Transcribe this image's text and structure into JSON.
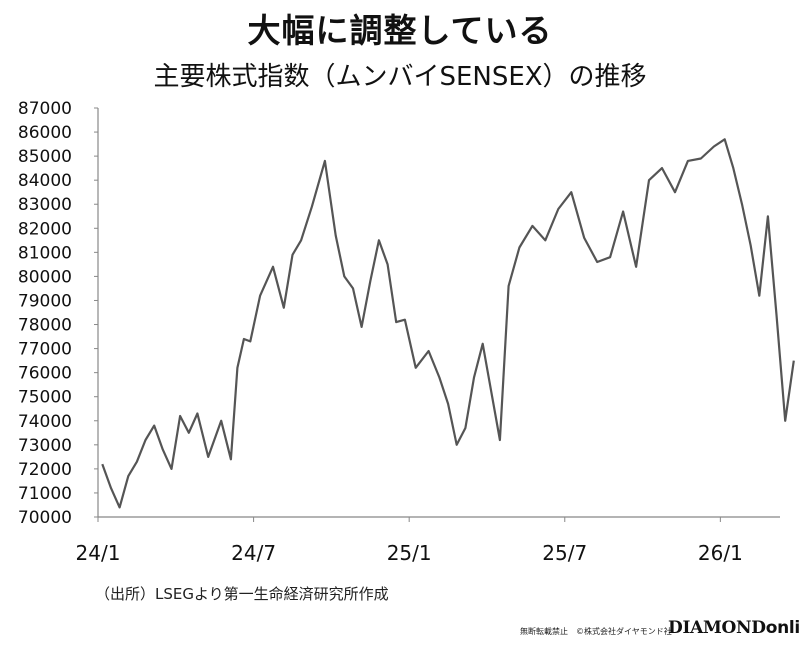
{
  "title": "大幅に調整している",
  "subtitle": "主要株式指数（ムンバイSENSEX）の推移",
  "source_note": "（出所）LSEGより第一生命経済研究所作成",
  "footer": {
    "rights": "無断転載禁止　©株式会社ダイヤモンド社",
    "brand_part1": "DIAMOND",
    "brand_part2": "online"
  },
  "chart_data": {
    "type": "line",
    "title": "主要株式指数（ムンバイSENSEX）の推移",
    "xlabel": "",
    "ylabel": "",
    "ylim": [
      70000,
      87000
    ],
    "yticks": [
      70000,
      71000,
      72000,
      73000,
      74000,
      75000,
      76000,
      77000,
      78000,
      79000,
      80000,
      81000,
      82000,
      83000,
      84000,
      85000,
      86000,
      87000
    ],
    "xticks": [
      "24/1",
      "24/7",
      "25/1",
      "25/7",
      "26/1"
    ],
    "xlim": [
      "2024-01",
      "2026-03"
    ],
    "grid": false,
    "color": "#555555",
    "series": [
      {
        "name": "",
        "x": [
          "2024-01",
          "2024-01",
          "2024-01",
          "2024-02",
          "2024-02",
          "2024-02",
          "2024-03",
          "2024-03",
          "2024-03",
          "2024-04",
          "2024-04",
          "2024-04",
          "2024-05",
          "2024-05",
          "2024-06",
          "2024-06",
          "2024-06",
          "2024-06",
          "2024-07",
          "2024-07",
          "2024-08",
          "2024-08",
          "2024-08",
          "2024-09",
          "2024-09",
          "2024-10",
          "2024-10",
          "2024-10",
          "2024-11",
          "2024-11",
          "2024-11",
          "2024-12",
          "2024-12",
          "2024-12",
          "2025-01",
          "2025-01",
          "2025-02",
          "2025-02",
          "2025-02",
          "2025-03",
          "2025-03",
          "2025-03",
          "2025-04",
          "2025-04",
          "2025-04",
          "2025-05",
          "2025-05",
          "2025-06",
          "2025-06",
          "2025-07",
          "2025-07",
          "2025-08",
          "2025-08",
          "2025-09",
          "2025-09",
          "2025-10",
          "2025-10",
          "2025-11",
          "2025-11",
          "2025-12",
          "2025-12",
          "2026-01",
          "2026-01",
          "2026-01",
          "2026-02",
          "2026-02",
          "2026-02",
          "2026-03",
          "2026-03",
          "2026-03"
        ],
        "values": [
          72200,
          71200,
          70400,
          71700,
          72300,
          73200,
          73800,
          72800,
          72000,
          74200,
          73500,
          74300,
          72500,
          74000,
          72400,
          76200,
          77400,
          77300,
          79200,
          80400,
          78700,
          80900,
          81500,
          82900,
          84800,
          81700,
          80000,
          79500,
          77900,
          79800,
          81500,
          80500,
          78100,
          78200,
          76200,
          76900,
          75800,
          74700,
          73000,
          73700,
          75800,
          77200,
          75200,
          73200,
          79600,
          81200,
          82100,
          81500,
          82800,
          83500,
          81600,
          80600,
          80800,
          82700,
          80400,
          84000,
          84500,
          83500,
          84800,
          84900,
          85400,
          85700,
          84500,
          83000,
          81300,
          79200,
          82500,
          78400,
          74000,
          76500
        ]
      }
    ]
  }
}
